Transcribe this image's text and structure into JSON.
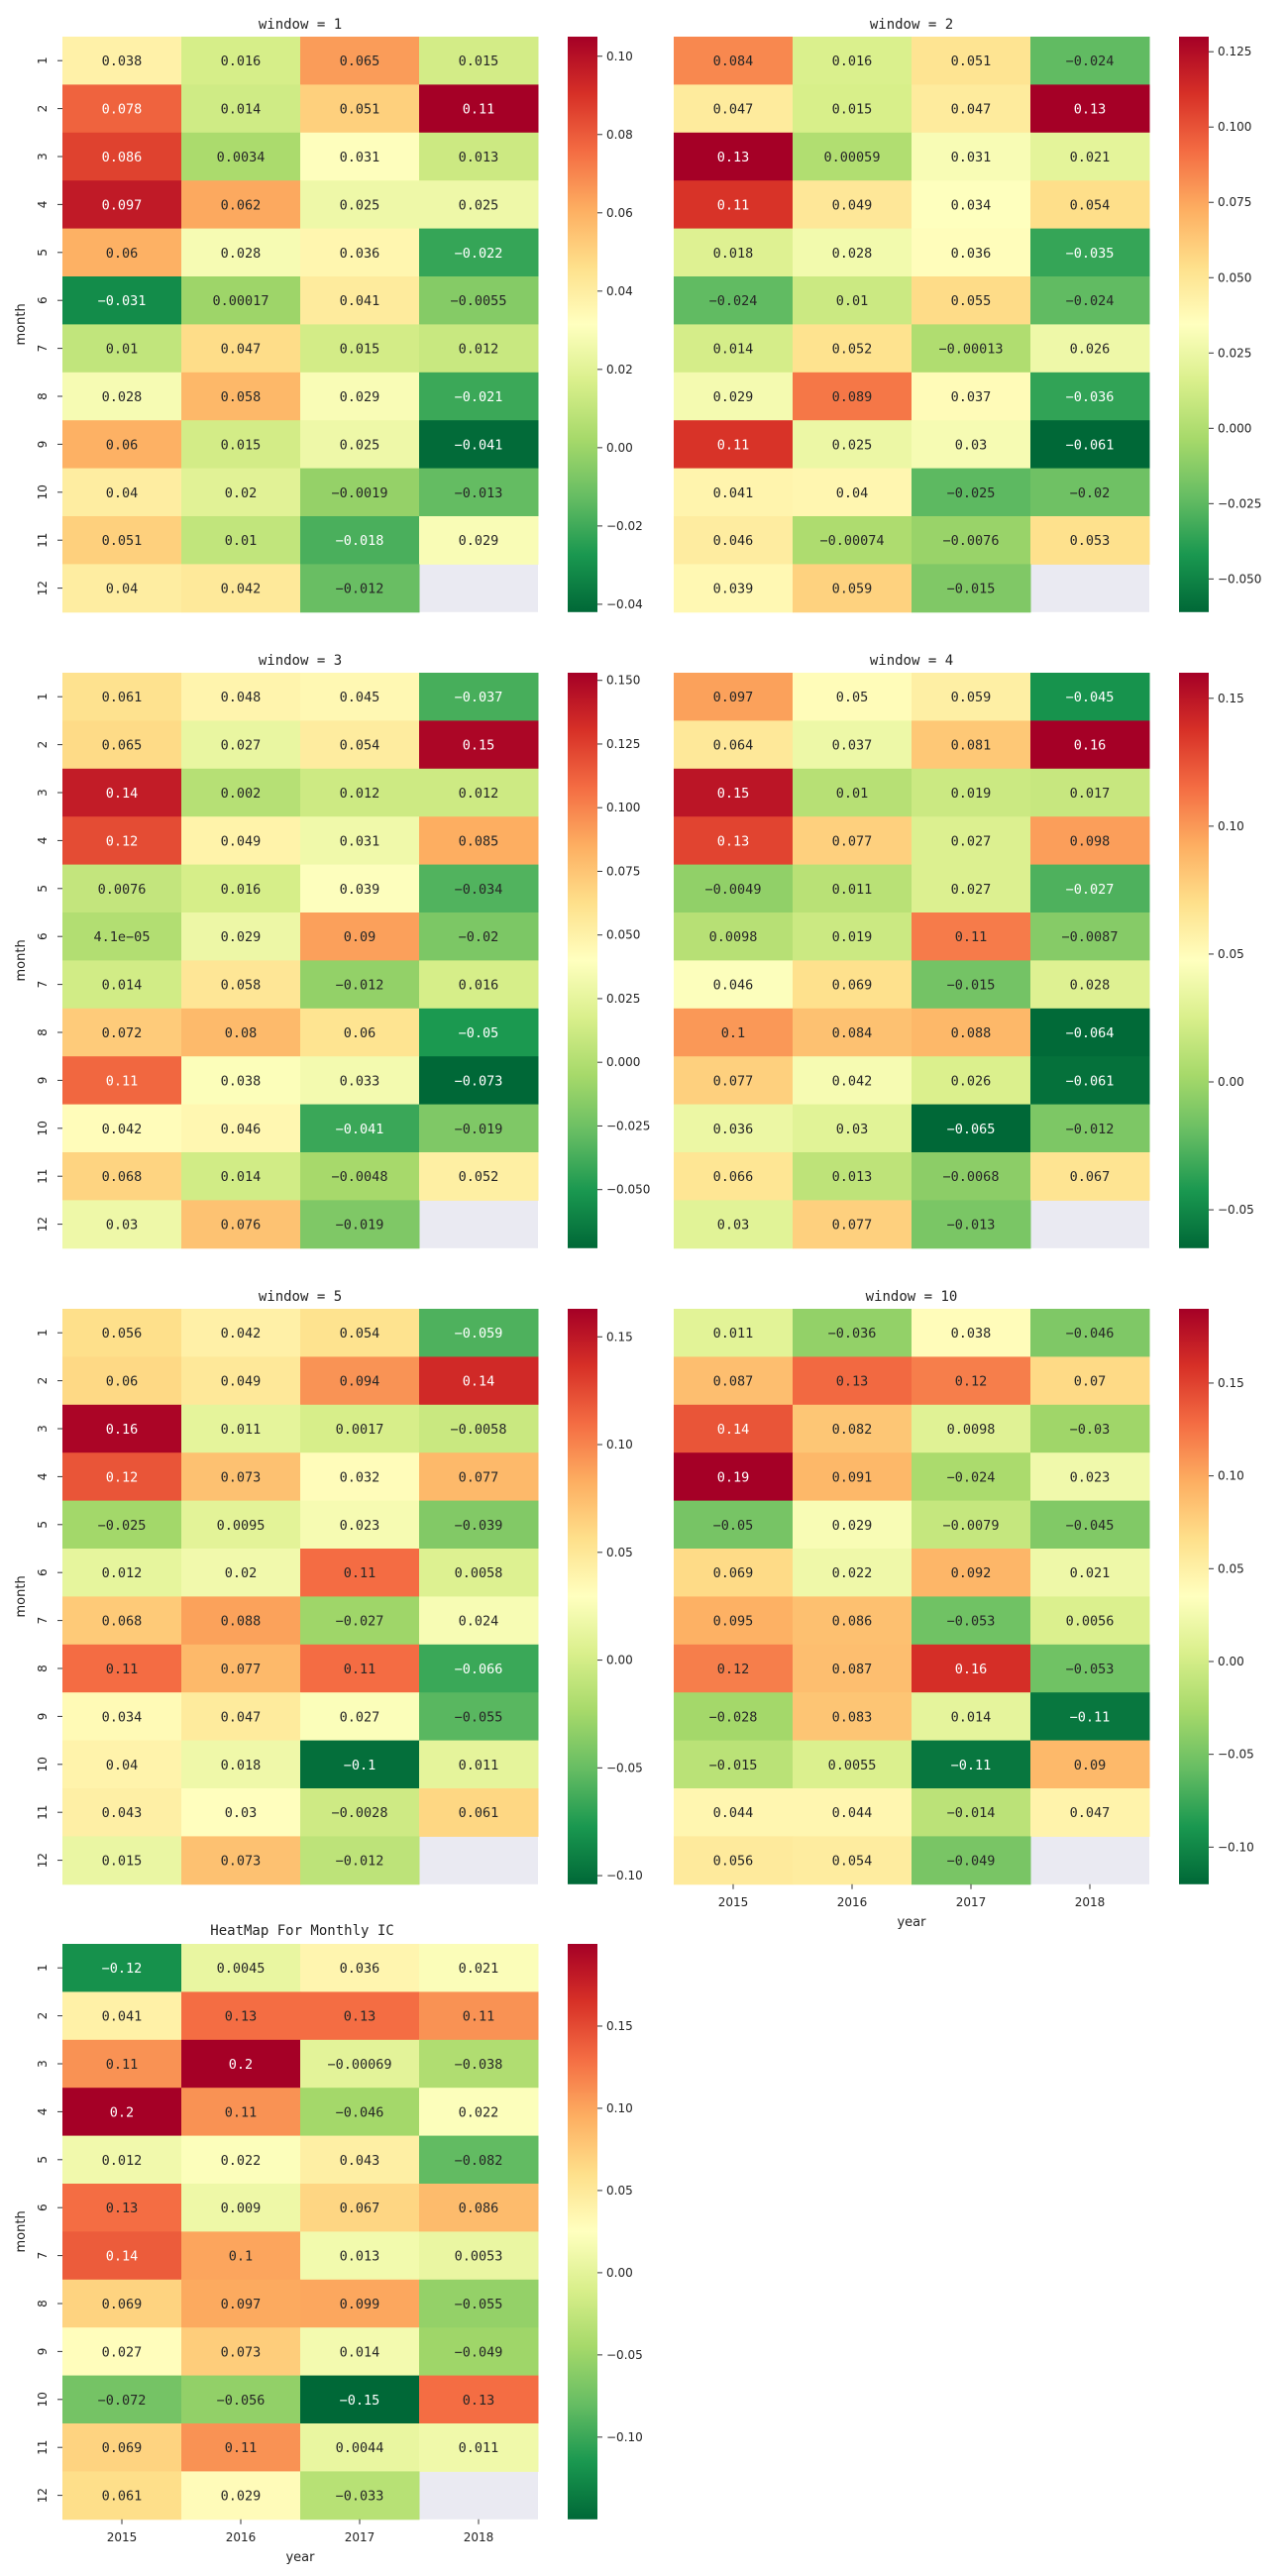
{
  "figure": {
    "suptitle": "HeatMap For Monthly IC"
  },
  "chart_data": [
    {
      "type": "heatmap",
      "title": "window = 1",
      "xlabel": "",
      "ylabel": "month",
      "x_categories": [],
      "y_categories": [
        "1",
        "2",
        "3",
        "4",
        "5",
        "6",
        "7",
        "8",
        "9",
        "10",
        "11",
        "12"
      ],
      "cells": [
        [
          "0.038",
          "0.016",
          "0.065",
          "0.015"
        ],
        [
          "0.078",
          "0.014",
          "0.051",
          "0.11"
        ],
        [
          "0.086",
          "0.0034",
          "0.031",
          "0.013"
        ],
        [
          "0.097",
          "0.062",
          "0.025",
          "0.025"
        ],
        [
          "0.06",
          "0.028",
          "0.036",
          "−0.022"
        ],
        [
          "−0.031",
          "0.00017",
          "0.041",
          "−0.0055"
        ],
        [
          "0.01",
          "0.047",
          "0.015",
          "0.012"
        ],
        [
          "0.028",
          "0.058",
          "0.029",
          "−0.021"
        ],
        [
          "0.06",
          "0.015",
          "0.025",
          "−0.041"
        ],
        [
          "0.04",
          "0.02",
          "−0.0019",
          "−0.013"
        ],
        [
          "0.051",
          "0.01",
          "−0.018",
          "0.029"
        ],
        [
          "0.04",
          "0.042",
          "−0.012",
          ""
        ]
      ],
      "cmap": "RdYlGn_r",
      "vmin": -0.042,
      "vmax": 0.105,
      "colorbar_ticks": [
        "−0.04",
        "−0.02",
        "0.00",
        "0.02",
        "0.04",
        "0.06",
        "0.08",
        "0.10"
      ]
    },
    {
      "type": "heatmap",
      "title": "window = 2",
      "xlabel": "",
      "ylabel": "",
      "x_categories": [],
      "y_categories": [],
      "cells": [
        [
          "0.084",
          "0.016",
          "0.051",
          "−0.024"
        ],
        [
          "0.047",
          "0.015",
          "0.047",
          "0.13"
        ],
        [
          "0.13",
          "0.00059",
          "0.031",
          "0.021"
        ],
        [
          "0.11",
          "0.049",
          "0.034",
          "0.054"
        ],
        [
          "0.018",
          "0.028",
          "0.036",
          "−0.035"
        ],
        [
          "−0.024",
          "0.01",
          "0.055",
          "−0.024"
        ],
        [
          "0.014",
          "0.052",
          "−0.00013",
          "0.026"
        ],
        [
          "0.029",
          "0.089",
          "0.037",
          "−0.036"
        ],
        [
          "0.11",
          "0.025",
          "0.03",
          "−0.061"
        ],
        [
          "0.041",
          "0.04",
          "−0.025",
          "−0.02"
        ],
        [
          "0.046",
          "−0.00074",
          "−0.0076",
          "0.053"
        ],
        [
          "0.039",
          "0.059",
          "−0.015",
          ""
        ]
      ],
      "cmap": "RdYlGn_r",
      "vmin": -0.061,
      "vmax": 0.13,
      "colorbar_ticks": [
        "−0.050",
        "−0.025",
        "0.000",
        "0.025",
        "0.050",
        "0.075",
        "0.100",
        "0.125"
      ]
    },
    {
      "type": "heatmap",
      "title": "window = 3",
      "xlabel": "",
      "ylabel": "month",
      "x_categories": [],
      "y_categories": [
        "1",
        "2",
        "3",
        "4",
        "5",
        "6",
        "7",
        "8",
        "9",
        "10",
        "11",
        "12"
      ],
      "cells": [
        [
          "0.061",
          "0.048",
          "0.045",
          "−0.037"
        ],
        [
          "0.065",
          "0.027",
          "0.054",
          "0.15"
        ],
        [
          "0.14",
          "0.002",
          "0.012",
          "0.012"
        ],
        [
          "0.12",
          "0.049",
          "0.031",
          "0.085"
        ],
        [
          "0.0076",
          "0.016",
          "0.039",
          "−0.034"
        ],
        [
          "4.1e−05",
          "0.029",
          "0.09",
          "−0.02"
        ],
        [
          "0.014",
          "0.058",
          "−0.012",
          "0.016"
        ],
        [
          "0.072",
          "0.08",
          "0.06",
          "−0.05"
        ],
        [
          "0.11",
          "0.038",
          "0.033",
          "−0.073"
        ],
        [
          "0.042",
          "0.046",
          "−0.041",
          "−0.019"
        ],
        [
          "0.068",
          "0.014",
          "−0.0048",
          "0.052"
        ],
        [
          "0.03",
          "0.076",
          "−0.019",
          ""
        ]
      ],
      "cmap": "RdYlGn_r",
      "vmin": -0.073,
      "vmax": 0.153,
      "colorbar_ticks": [
        "−0.050",
        "−0.025",
        "0.000",
        "0.025",
        "0.050",
        "0.075",
        "0.100",
        "0.125",
        "0.150"
      ]
    },
    {
      "type": "heatmap",
      "title": "window = 4",
      "xlabel": "",
      "ylabel": "",
      "x_categories": [],
      "y_categories": [],
      "cells": [
        [
          "0.097",
          "0.05",
          "0.059",
          "−0.045"
        ],
        [
          "0.064",
          "0.037",
          "0.081",
          "0.16"
        ],
        [
          "0.15",
          "0.01",
          "0.019",
          "0.017"
        ],
        [
          "0.13",
          "0.077",
          "0.027",
          "0.098"
        ],
        [
          "−0.0049",
          "0.011",
          "0.027",
          "−0.027"
        ],
        [
          "0.0098",
          "0.019",
          "0.11",
          "−0.0087"
        ],
        [
          "0.046",
          "0.069",
          "−0.015",
          "0.028"
        ],
        [
          "0.1",
          "0.084",
          "0.088",
          "−0.064"
        ],
        [
          "0.077",
          "0.042",
          "0.026",
          "−0.061"
        ],
        [
          "0.036",
          "0.03",
          "−0.065",
          "−0.012"
        ],
        [
          "0.066",
          "0.013",
          "−0.0068",
          "0.067"
        ],
        [
          "0.03",
          "0.077",
          "−0.013",
          ""
        ]
      ],
      "cmap": "RdYlGn_r",
      "vmin": -0.065,
      "vmax": 0.16,
      "colorbar_ticks": [
        "−0.05",
        "0.00",
        "0.05",
        "0.10",
        "0.15"
      ]
    },
    {
      "type": "heatmap",
      "title": "window = 5",
      "xlabel": "",
      "ylabel": "month",
      "x_categories": [],
      "y_categories": [
        "1",
        "2",
        "3",
        "4",
        "5",
        "6",
        "7",
        "8",
        "9",
        "10",
        "11",
        "12"
      ],
      "cells": [
        [
          "0.056",
          "0.042",
          "0.054",
          "−0.059"
        ],
        [
          "0.06",
          "0.049",
          "0.094",
          "0.14"
        ],
        [
          "0.16",
          "0.011",
          "0.0017",
          "−0.0058"
        ],
        [
          "0.12",
          "0.073",
          "0.032",
          "0.077"
        ],
        [
          "−0.025",
          "0.0095",
          "0.023",
          "−0.039"
        ],
        [
          "0.012",
          "0.02",
          "0.11",
          "0.0058"
        ],
        [
          "0.068",
          "0.088",
          "−0.027",
          "0.024"
        ],
        [
          "0.11",
          "0.077",
          "0.11",
          "−0.066"
        ],
        [
          "0.034",
          "0.047",
          "0.027",
          "−0.055"
        ],
        [
          "0.04",
          "0.018",
          "−0.1",
          "0.011"
        ],
        [
          "0.043",
          "0.03",
          "−0.0028",
          "0.061"
        ],
        [
          "0.015",
          "0.073",
          "−0.012",
          ""
        ]
      ],
      "cmap": "RdYlGn_r",
      "vmin": -0.104,
      "vmax": 0.163,
      "colorbar_ticks": [
        "−0.10",
        "−0.05",
        "0.00",
        "0.05",
        "0.10",
        "0.15"
      ]
    },
    {
      "type": "heatmap",
      "title": "window = 10",
      "xlabel": "year",
      "ylabel": "",
      "x_categories": [
        "2015",
        "2016",
        "2017",
        "2018"
      ],
      "y_categories": [],
      "cells": [
        [
          "0.011",
          "−0.036",
          "0.038",
          "−0.046"
        ],
        [
          "0.087",
          "0.13",
          "0.12",
          "0.07"
        ],
        [
          "0.14",
          "0.082",
          "0.0098",
          "−0.03"
        ],
        [
          "0.19",
          "0.091",
          "−0.024",
          "0.023"
        ],
        [
          "−0.05",
          "0.029",
          "−0.0079",
          "−0.045"
        ],
        [
          "0.069",
          "0.022",
          "0.092",
          "0.021"
        ],
        [
          "0.095",
          "0.086",
          "−0.053",
          "0.0056"
        ],
        [
          "0.12",
          "0.087",
          "0.16",
          "−0.053"
        ],
        [
          "−0.028",
          "0.083",
          "0.014",
          "−0.11"
        ],
        [
          "−0.015",
          "0.0055",
          "−0.11",
          "0.09"
        ],
        [
          "0.044",
          "0.044",
          "−0.014",
          "0.047"
        ],
        [
          "0.056",
          "0.054",
          "−0.049",
          ""
        ]
      ],
      "cmap": "RdYlGn_r",
      "vmin": -0.12,
      "vmax": 0.19,
      "colorbar_ticks": [
        "−0.10",
        "−0.05",
        "0.00",
        "0.05",
        "0.10",
        "0.15"
      ]
    },
    {
      "type": "heatmap",
      "title": "",
      "xlabel": "year",
      "ylabel": "month",
      "x_categories": [
        "2015",
        "2016",
        "2017",
        "2018"
      ],
      "y_categories": [
        "1",
        "2",
        "3",
        "4",
        "5",
        "6",
        "7",
        "8",
        "9",
        "10",
        "11",
        "12"
      ],
      "cells": [
        [
          "−0.12",
          "0.0045",
          "0.036",
          "0.021"
        ],
        [
          "0.041",
          "0.13",
          "0.13",
          "0.11"
        ],
        [
          "0.11",
          "0.2",
          "−0.00069",
          "−0.038"
        ],
        [
          "0.2",
          "0.11",
          "−0.046",
          "0.022"
        ],
        [
          "0.012",
          "0.022",
          "0.043",
          "−0.082"
        ],
        [
          "0.13",
          "0.009",
          "0.067",
          "0.086"
        ],
        [
          "0.14",
          "0.1",
          "0.013",
          "0.0053"
        ],
        [
          "0.069",
          "0.097",
          "0.099",
          "−0.055"
        ],
        [
          "0.027",
          "0.073",
          "0.014",
          "−0.049"
        ],
        [
          "−0.072",
          "−0.056",
          "−0.15",
          "0.13"
        ],
        [
          "0.069",
          "0.11",
          "0.0044",
          "0.011"
        ],
        [
          "0.061",
          "0.029",
          "−0.033",
          ""
        ]
      ],
      "cmap": "RdYlGn_r",
      "vmin": -0.15,
      "vmax": 0.2,
      "colorbar_ticks": [
        "−0.10",
        "−0.05",
        "0.00",
        "0.05",
        "0.10",
        "0.15"
      ]
    }
  ]
}
